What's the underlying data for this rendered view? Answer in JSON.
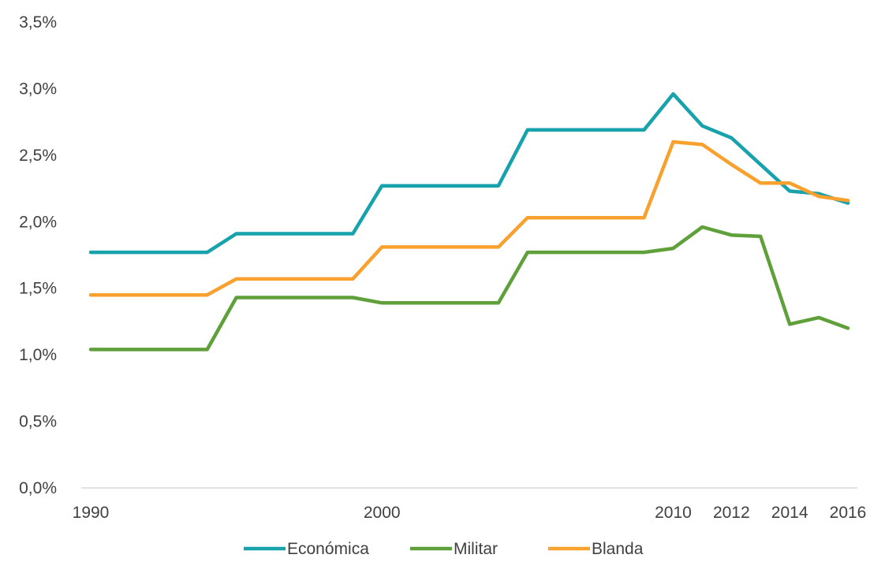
{
  "chart_data": {
    "type": "line",
    "x": [
      1990,
      1991,
      1992,
      1993,
      1994,
      1995,
      1996,
      1997,
      1998,
      1999,
      2000,
      2001,
      2002,
      2003,
      2004,
      2005,
      2006,
      2007,
      2008,
      2009,
      2010,
      2011,
      2012,
      2013,
      2014,
      2015,
      2016
    ],
    "x_tick_values": [
      1990,
      2000,
      2010,
      2012,
      2014,
      2016
    ],
    "x_tick_labels": [
      "1990",
      "2000",
      "2010",
      "2012",
      "2014",
      "2016"
    ],
    "y_tick_values": [
      0,
      0.5,
      1.0,
      1.5,
      2.0,
      2.5,
      3.0,
      3.5
    ],
    "y_tick_labels": [
      "0,0%",
      "0,5%",
      "1,0%",
      "1,5%",
      "2,0%",
      "2,5%",
      "3,0%",
      "3,5%"
    ],
    "ylim": [
      0,
      3.5
    ],
    "xlim": [
      1990,
      2016
    ],
    "grid": false,
    "legend_position": "bottom",
    "series": [
      {
        "name": "Económica",
        "color": "#17A2AC",
        "values": [
          1.77,
          1.77,
          1.77,
          1.77,
          1.77,
          1.91,
          1.91,
          1.91,
          1.91,
          1.91,
          2.27,
          2.27,
          2.27,
          2.27,
          2.27,
          2.69,
          2.69,
          2.69,
          2.69,
          2.69,
          2.96,
          2.72,
          2.63,
          2.43,
          2.23,
          2.21,
          2.14
        ]
      },
      {
        "name": "Militar",
        "color": "#5FA03A",
        "values": [
          1.04,
          1.04,
          1.04,
          1.04,
          1.04,
          1.43,
          1.43,
          1.43,
          1.43,
          1.43,
          1.39,
          1.39,
          1.39,
          1.39,
          1.39,
          1.77,
          1.77,
          1.77,
          1.77,
          1.77,
          1.8,
          1.96,
          1.9,
          1.89,
          1.23,
          1.28,
          1.2
        ]
      },
      {
        "name": "Blanda",
        "color": "#F9A12E",
        "values": [
          1.45,
          1.45,
          1.45,
          1.45,
          1.45,
          1.57,
          1.57,
          1.57,
          1.57,
          1.57,
          1.81,
          1.81,
          1.81,
          1.81,
          1.81,
          2.03,
          2.03,
          2.03,
          2.03,
          2.03,
          2.6,
          2.58,
          2.43,
          2.29,
          2.29,
          2.19,
          2.16
        ]
      }
    ]
  }
}
